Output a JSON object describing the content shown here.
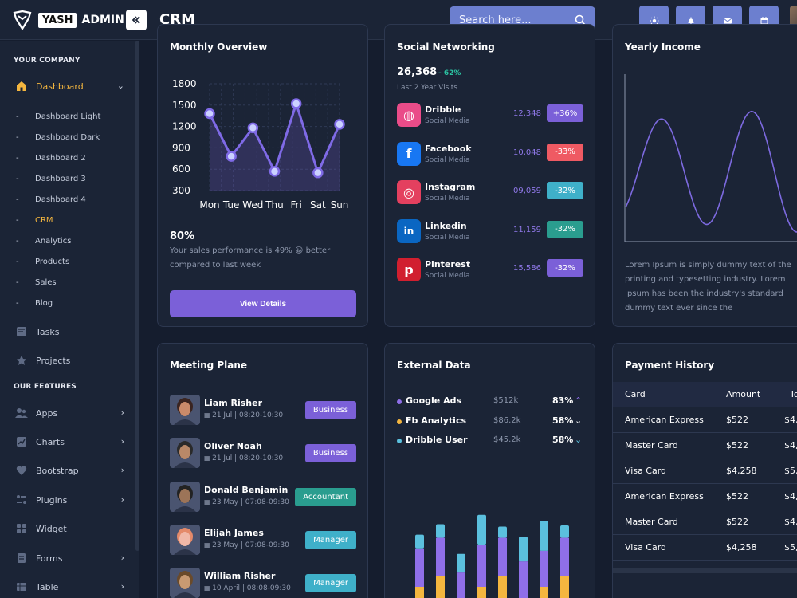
{
  "header": {
    "logo_yash": "YASH",
    "logo_admin": "ADMIN",
    "page_title": "CRM",
    "search_placeholder": "Search here..."
  },
  "sidebar": {
    "company_section": "YOUR COMPANY",
    "dashboard": "Dashboard",
    "subitems": [
      "Dashboard Light",
      "Dashboard Dark",
      "Dashboard 2",
      "Dashboard 3",
      "Dashboard 4",
      "CRM",
      "Analytics",
      "Products",
      "Sales",
      "Blog"
    ],
    "active_sub": "CRM",
    "tasks": "Tasks",
    "projects": "Projects",
    "features_section": "OUR FEATURES",
    "features": [
      "Apps",
      "Charts",
      "Bootstrap",
      "Plugins",
      "Widget",
      "Forms",
      "Table"
    ]
  },
  "monthly": {
    "title": "Monthly Overview",
    "percent": "80%",
    "desc_line1": "Your sales performance is 49% 😀 better",
    "desc_line2": "compared to last week",
    "button": "View Details",
    "chart_data": {
      "type": "line",
      "categories": [
        "Mon",
        "Tue",
        "Wed",
        "Thu",
        "Fri",
        "Sat",
        "Sun"
      ],
      "values": [
        1380,
        780,
        1180,
        570,
        1520,
        550,
        1230
      ],
      "yticks": [
        1800,
        1500,
        1200,
        900,
        600,
        300
      ],
      "ylim": [
        300,
        1800
      ]
    }
  },
  "social": {
    "title": "Social Networking",
    "total": "26,368",
    "growth": "- 62%",
    "subtitle": "Last 2 Year Visits",
    "rows": [
      {
        "name": "Dribble",
        "sub": "Social Media",
        "value": "12,348",
        "badge": "+36%",
        "badge_color": "#7b60d8",
        "icon": "dribbble-icon",
        "icon_bg": "#ea4c89",
        "glyph": "◍"
      },
      {
        "name": "Facebook",
        "sub": "Social Media",
        "value": "10,048",
        "badge": "-33%",
        "badge_color": "#ef5a63",
        "icon": "facebook-icon",
        "icon_bg": "#1877f2",
        "glyph": "f"
      },
      {
        "name": "Instagram",
        "sub": "Social Media",
        "value": "09,059",
        "badge": "-32%",
        "badge_color": "#3fb0c9",
        "icon": "instagram-icon",
        "icon_bg": "#e4405f",
        "glyph": "◎"
      },
      {
        "name": "Linkedin",
        "sub": "Social Media",
        "value": "11,159",
        "badge": "-32%",
        "badge_color": "#2a9d8f",
        "icon": "linkedin-icon",
        "icon_bg": "#0a66c2",
        "glyph": "in"
      },
      {
        "name": "Pinterest",
        "sub": "Social Media",
        "value": "15,586",
        "badge": "-32%",
        "badge_color": "#7b60d8",
        "icon": "pinterest-icon",
        "icon_bg": "#d11f2f",
        "glyph": "p"
      }
    ]
  },
  "yearly": {
    "title": "Yearly Income",
    "text": "Lorem Ipsum is simply dummy text of the printing and typesetting industry. Lorem Ipsum has been the industry's standard dummy text ever since the"
  },
  "meeting": {
    "title": "Meeting Plane",
    "rows": [
      {
        "name": "Liam Risher",
        "date": "21 Jul | 08:20-10:30",
        "tag": "Business",
        "tag_color": "#7b60d8",
        "skin": "#c98a6a",
        "hair": "#3a2420"
      },
      {
        "name": "Oliver Noah",
        "date": "21 Jul | 08:20-10:30",
        "tag": "Business",
        "tag_color": "#7b60d8",
        "skin": "#b88868",
        "hair": "#2a2a2a"
      },
      {
        "name": "Donald Benjamin",
        "date": "23 May | 07:08-09:30",
        "tag": "Accountant",
        "tag_color": "#2a9d8f",
        "skin": "#9c7458",
        "hair": "#222"
      },
      {
        "name": "Elijah James",
        "date": "23 May | 07:08-09:30",
        "tag": "Manager",
        "tag_color": "#3fb0c9",
        "skin": "#f0b8a8",
        "hair": "#e48a6a"
      },
      {
        "name": "William Risher",
        "date": "10 April | 08:08-09:30",
        "tag": "Manager",
        "tag_color": "#3fb0c9",
        "skin": "#c89a72",
        "hair": "#6a4a2a"
      }
    ]
  },
  "external": {
    "title": "External Data",
    "rows": [
      {
        "name": "Google Ads",
        "amount": "$512k",
        "pct": "83%",
        "dot": "#8f6fe8",
        "arrow": "⌃",
        "arrow_color": "#8f6fe8"
      },
      {
        "name": "Fb Analytics",
        "amount": "$86.2k",
        "pct": "58%",
        "dot": "#f4b63f",
        "arrow": "⌄",
        "arrow_color": "#ffffff"
      },
      {
        "name": "Dribble User",
        "amount": "$45.2k",
        "pct": "58%",
        "dot": "#5bc0de",
        "arrow": "⌄",
        "arrow_color": "#5bc0de"
      }
    ],
    "chart_data": {
      "type": "bar",
      "stacked": true,
      "colors": [
        "#f4b63f",
        "#8f6fe8",
        "#5bc0de"
      ],
      "series": [
        {
          "values": [
            45,
            62,
            18,
            45,
            62,
            18,
            45,
            62
          ]
        },
        {
          "values": [
            62,
            62,
            50,
            68,
            62,
            68,
            58,
            62
          ]
        },
        {
          "values": [
            22,
            22,
            30,
            48,
            18,
            40,
            48,
            20
          ]
        }
      ],
      "ylim": [
        0,
        180
      ]
    }
  },
  "payment": {
    "title": "Payment History",
    "columns": [
      "Card",
      "Amount",
      "To"
    ],
    "rows": [
      [
        "American Express",
        "$522",
        "$4,"
      ],
      [
        "Master Card",
        "$522",
        "$4,"
      ],
      [
        "Visa Card",
        "$4,258",
        "$5,"
      ],
      [
        "American Express",
        "$522",
        "$4,"
      ],
      [
        "Master Card",
        "$522",
        "$4,"
      ],
      [
        "Visa Card",
        "$4,258",
        "$5,"
      ]
    ]
  }
}
